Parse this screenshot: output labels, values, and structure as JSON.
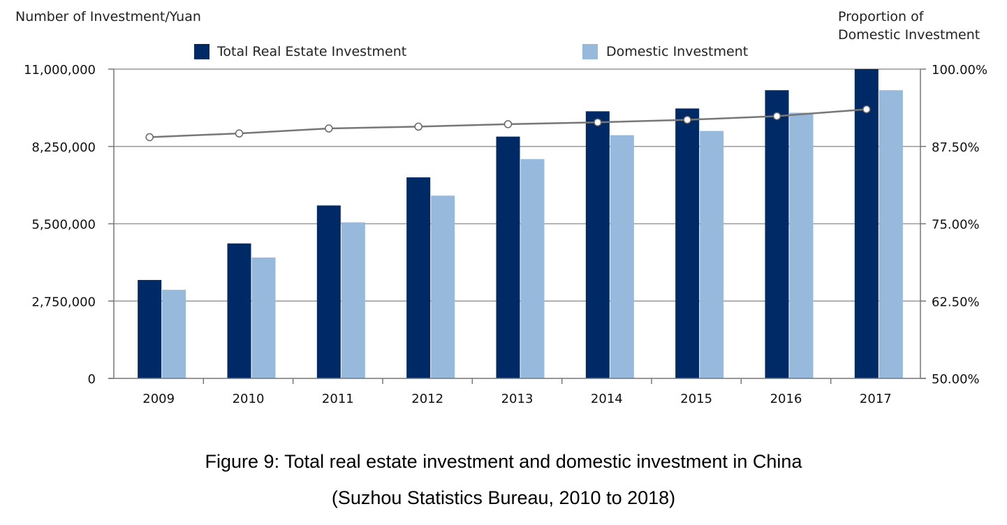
{
  "chart_data": {
    "type": "bar",
    "categories": [
      "2009",
      "2010",
      "2011",
      "2012",
      "2013",
      "2014",
      "2015",
      "2016",
      "2017"
    ],
    "series": [
      {
        "name": "Total Real Estate Investment",
        "axis": "left",
        "color": "#002a66",
        "values": [
          3500000,
          4800000,
          6150000,
          7150000,
          8600000,
          9500000,
          9600000,
          10250000,
          11000000
        ]
      },
      {
        "name": "Domestic Investment",
        "axis": "left",
        "color": "#96b9dc",
        "values": [
          3150000,
          4300000,
          5550000,
          6500000,
          7800000,
          8650000,
          8800000,
          9450000,
          10250000
        ]
      },
      {
        "name": "",
        "type": "line",
        "axis": "right",
        "color": "#777777",
        "values": [
          89.0,
          89.6,
          90.4,
          90.7,
          91.1,
          91.4,
          91.8,
          92.4,
          93.5
        ]
      }
    ],
    "ylabel": "Number of Investment/Yuan",
    "y2label_lines": [
      "Proportion of",
      "Domestic Investment"
    ],
    "ylim": [
      0,
      11000000
    ],
    "yticks": [
      "0",
      "2,750,000",
      "5,500,000",
      "8,250,000",
      "11,000,000"
    ],
    "y2lim": [
      50,
      100
    ],
    "y2ticks": [
      "50.00%",
      "62.50%",
      "75.00%",
      "87.50%",
      "100.00%"
    ],
    "grid": true,
    "legend_position": "top"
  },
  "caption": {
    "line1": "Figure 9: Total real estate investment and domestic investment in China",
    "line2": "(Suzhou Statistics Bureau, 2010 to 2018)"
  }
}
